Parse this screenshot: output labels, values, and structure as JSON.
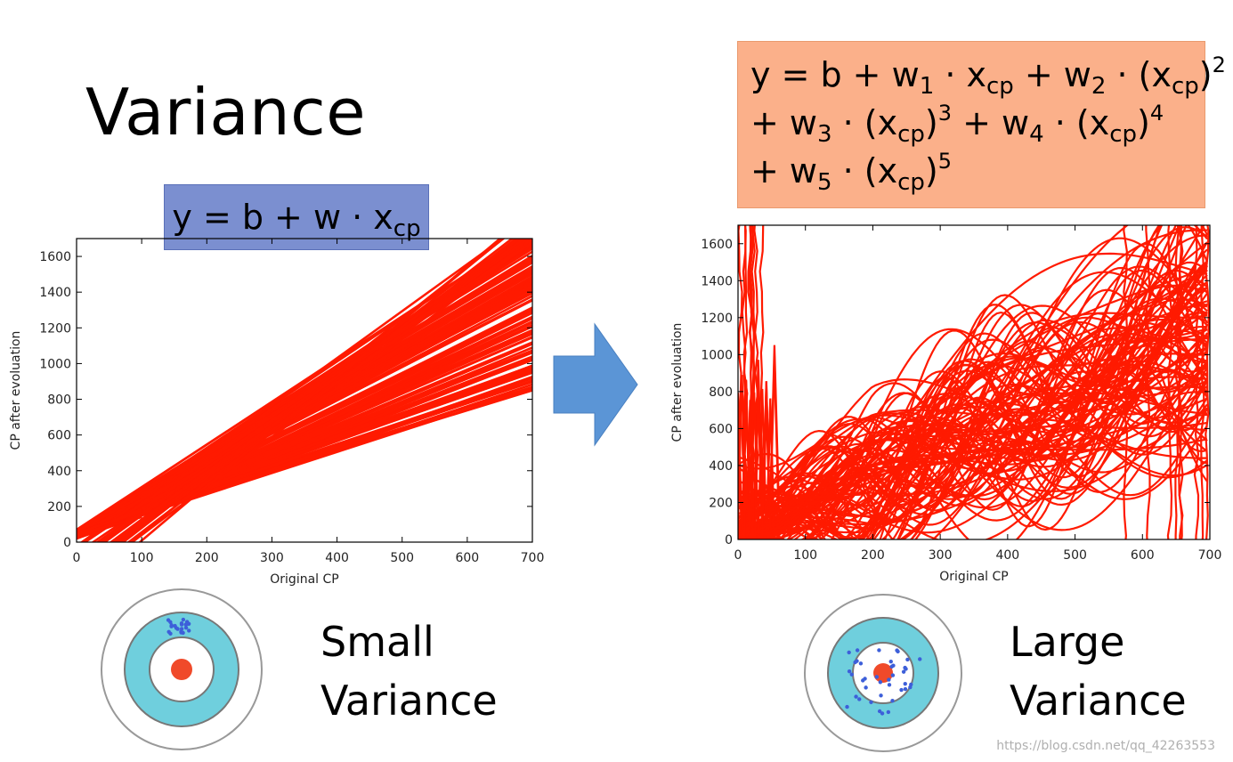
{
  "slide": {
    "title": "Variance",
    "watermark": "https://blog.csdn.net/qq_42263553"
  },
  "left": {
    "equation": {
      "y": "y = b + w · x",
      "sub": "cp"
    },
    "caption_line1": "Small",
    "caption_line2": "Variance"
  },
  "right": {
    "equation": {
      "l1a": "y = b + w",
      "l1s1": "1",
      "l1b": " · x",
      "l1s2": "cp",
      "l1c": " + w",
      "l1s3": "2",
      "l1d": " · (x",
      "l1s4": "cp",
      "l1e": ")",
      "l1p": "2",
      "l2a": "+ w",
      "l2s1": "3",
      "l2b": " · (x",
      "l2s2": "cp",
      "l2c": ")",
      "l2p1": "3",
      "l2d": " + w",
      "l2s3": "4",
      "l2e": " · (x",
      "l2s4": "cp",
      "l2f": ")",
      "l2p2": "4",
      "l3a": "+ w",
      "l3s1": "5",
      "l3b": " · (x",
      "l3s2": "cp",
      "l3c": ")",
      "l3p": "5"
    },
    "caption_line1": "Large",
    "caption_line2": "Variance"
  },
  "colors": {
    "line": "#ff1a00",
    "target_blue": "#6fcfdd",
    "bullseye": "#f04a2a",
    "dots": "#3d5fd9",
    "left_box": "#7b8fd0",
    "right_box": "#fbb08a"
  },
  "chart_data": [
    {
      "type": "line",
      "title": "",
      "xlabel": "Original CP",
      "ylabel": "CP after evoluation",
      "xlim": [
        0,
        700
      ],
      "ylim": [
        0,
        1700
      ],
      "xticks": [
        0,
        100,
        200,
        300,
        400,
        500,
        600,
        700
      ],
      "yticks": [
        0,
        200,
        400,
        600,
        800,
        1000,
        1200,
        1400,
        1600
      ],
      "series_description": "100 linear fits y = b + w*x",
      "fan_endpoints_at_700": [
        860,
        900,
        940,
        1000,
        1060,
        1120,
        1200,
        1280,
        1360,
        1440,
        1520,
        1580,
        1650,
        1700
      ]
    },
    {
      "type": "line",
      "title": "",
      "xlabel": "Original CP",
      "ylabel": "CP after evoluation",
      "xlim": [
        0,
        700
      ],
      "ylim": [
        0,
        1700
      ],
      "xticks": [
        0,
        100,
        200,
        300,
        400,
        500,
        600,
        700
      ],
      "yticks": [
        0,
        200,
        400,
        600,
        800,
        1000,
        1200,
        1400,
        1600
      ],
      "series_description": "100 fifth-degree polynomial fits"
    }
  ]
}
